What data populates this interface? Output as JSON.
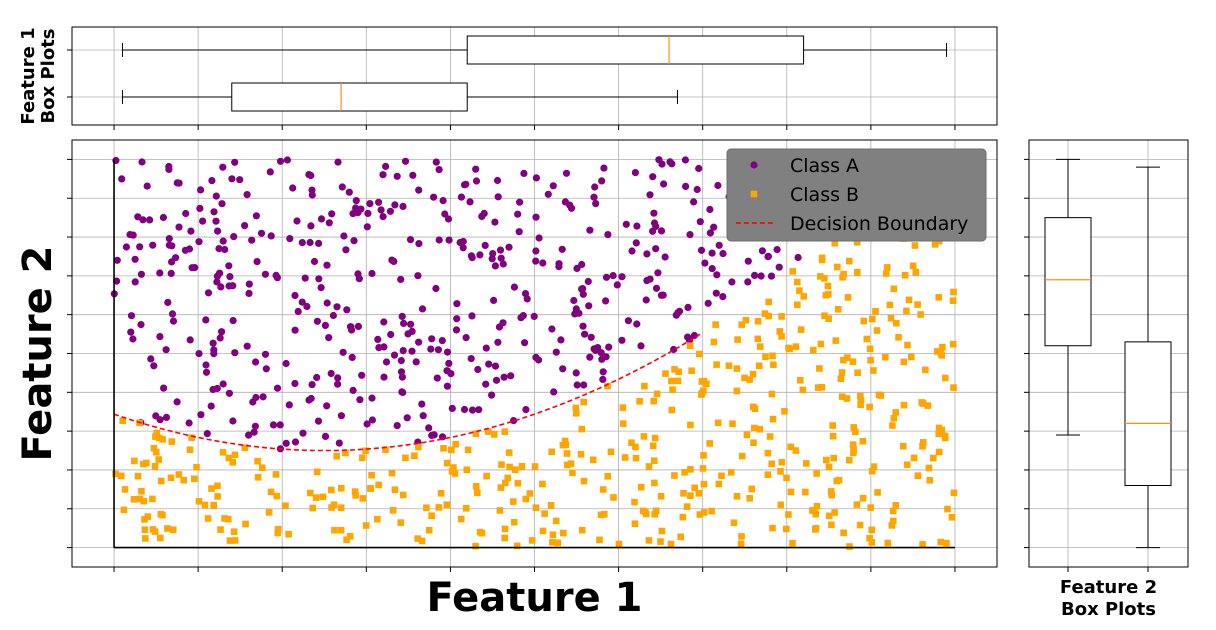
{
  "chart_data": {
    "type": "scatter",
    "xlabel": "Feature 1",
    "ylabel": "Feature 2",
    "xlim": [
      -0.05,
      1.05
    ],
    "ylim": [
      -0.05,
      1.05
    ],
    "grid": true,
    "legend_position": "top-right",
    "tick_labels": "none",
    "series": [
      {
        "name": "Class A",
        "marker": "circle",
        "color": "#800080",
        "count": 500
      },
      {
        "name": "Class B",
        "marker": "square",
        "color": "#FFA500",
        "count": 500
      }
    ],
    "decision_boundary": {
      "name": "Decision Boundary",
      "color": "#FF0000",
      "style": "dashed",
      "equation": "y = 0.25 + 1.5*(x - 0.25)^2",
      "x_range": [
        0.0,
        0.7
      ]
    },
    "top_boxplots": {
      "ylabel": "Feature 1\nBox Plots",
      "orientation": "horizontal",
      "boxes": [
        {
          "position": "upper",
          "whisker_low": 0.01,
          "q1": 0.42,
          "median": 0.66,
          "q3": 0.82,
          "whisker_high": 0.99
        },
        {
          "position": "lower",
          "whisker_low": 0.01,
          "q1": 0.14,
          "median": 0.27,
          "q3": 0.42,
          "whisker_high": 0.67
        }
      ]
    },
    "right_boxplots": {
      "xlabel": "Feature 2\nBox Plots",
      "orientation": "vertical",
      "boxes": [
        {
          "position": "left",
          "whisker_low": 0.29,
          "q1": 0.52,
          "median": 0.69,
          "q3": 0.85,
          "whisker_high": 1.0
        },
        {
          "position": "right",
          "whisker_low": 0.0,
          "q1": 0.16,
          "median": 0.32,
          "q3": 0.53,
          "whisker_high": 0.98
        }
      ]
    }
  },
  "colors": {
    "class_a": "#800080",
    "class_b": "#FFA500",
    "boundary": "#FF0000",
    "median": "#FF8C1A",
    "legend_bg": "#808080",
    "grid": "#b0b0b0"
  }
}
